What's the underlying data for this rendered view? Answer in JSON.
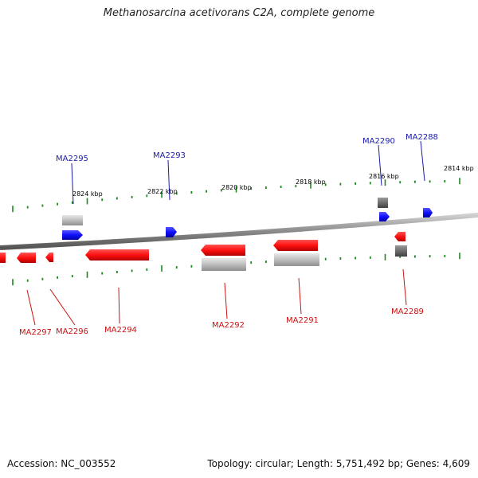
{
  "title": "Methanosarcina acetivorans C2A, complete genome",
  "footer": {
    "accession": "Accession: NC_003552",
    "summary": "Topology: circular; Length: 5,751,492 bp; Genes: 4,609"
  },
  "colors": {
    "forward_gene": "#1a1aff",
    "reverse_gene": "#ff1a1a",
    "tick": "#1a8a1a",
    "backbone": "#8a8a8a",
    "label_forward": "#1a1aaa",
    "label_reverse": "#cc1111"
  },
  "kbp_labels": [
    "2824 kbp",
    "2822 kbp",
    "2820 kbp",
    "2818 kbp",
    "2816 kbp",
    "2814 kbp"
  ],
  "gene_labels_top": [
    "MA2295",
    "MA2293",
    "MA2290",
    "MA2288"
  ],
  "gene_labels_bottom": [
    "MA2297",
    "MA2296",
    "MA2294",
    "MA2292",
    "MA2291",
    "MA2289"
  ]
}
